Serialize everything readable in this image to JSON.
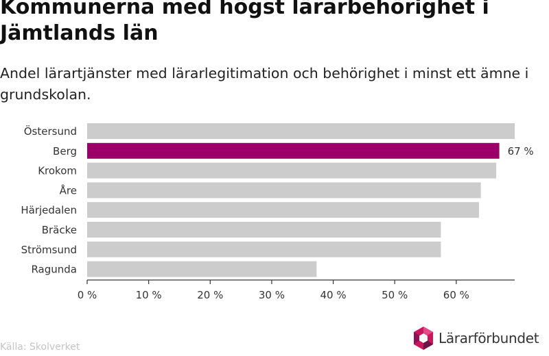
{
  "chart_data": {
    "type": "bar",
    "orientation": "horizontal",
    "title": "Kommunerna med högst lärarbehörighet i Jämtlands län",
    "subtitle": "Andel lärartjänster med lärarlegitimation och behörighet i minst ett ämne i grundskolan.",
    "categories": [
      "Östersund",
      "Berg",
      "Krokom",
      "Åre",
      "Härjedalen",
      "Bräcke",
      "Strömsund",
      "Ragunda"
    ],
    "values": [
      69.5,
      67,
      66.5,
      64,
      63.7,
      57.5,
      57.5,
      37.3
    ],
    "highlight_index": 1,
    "data_labels": [
      "",
      "67 %",
      "",
      "",
      "",
      "",
      "",
      ""
    ],
    "xlim": [
      0,
      69.5
    ],
    "xticks": [
      0,
      10,
      20,
      30,
      40,
      50,
      60
    ],
    "xtick_labels": [
      "0 %",
      "10 %",
      "20 %",
      "30 %",
      "40 %",
      "50 %",
      "60 %"
    ],
    "colors": {
      "bar": "#cccccc",
      "highlight": "#9b0068",
      "axis": "#333333"
    },
    "grid": false
  },
  "source": "Källa: Skolverket",
  "logo": {
    "text": "Lärarförbundet",
    "icon": "hexagon-logo-icon"
  }
}
